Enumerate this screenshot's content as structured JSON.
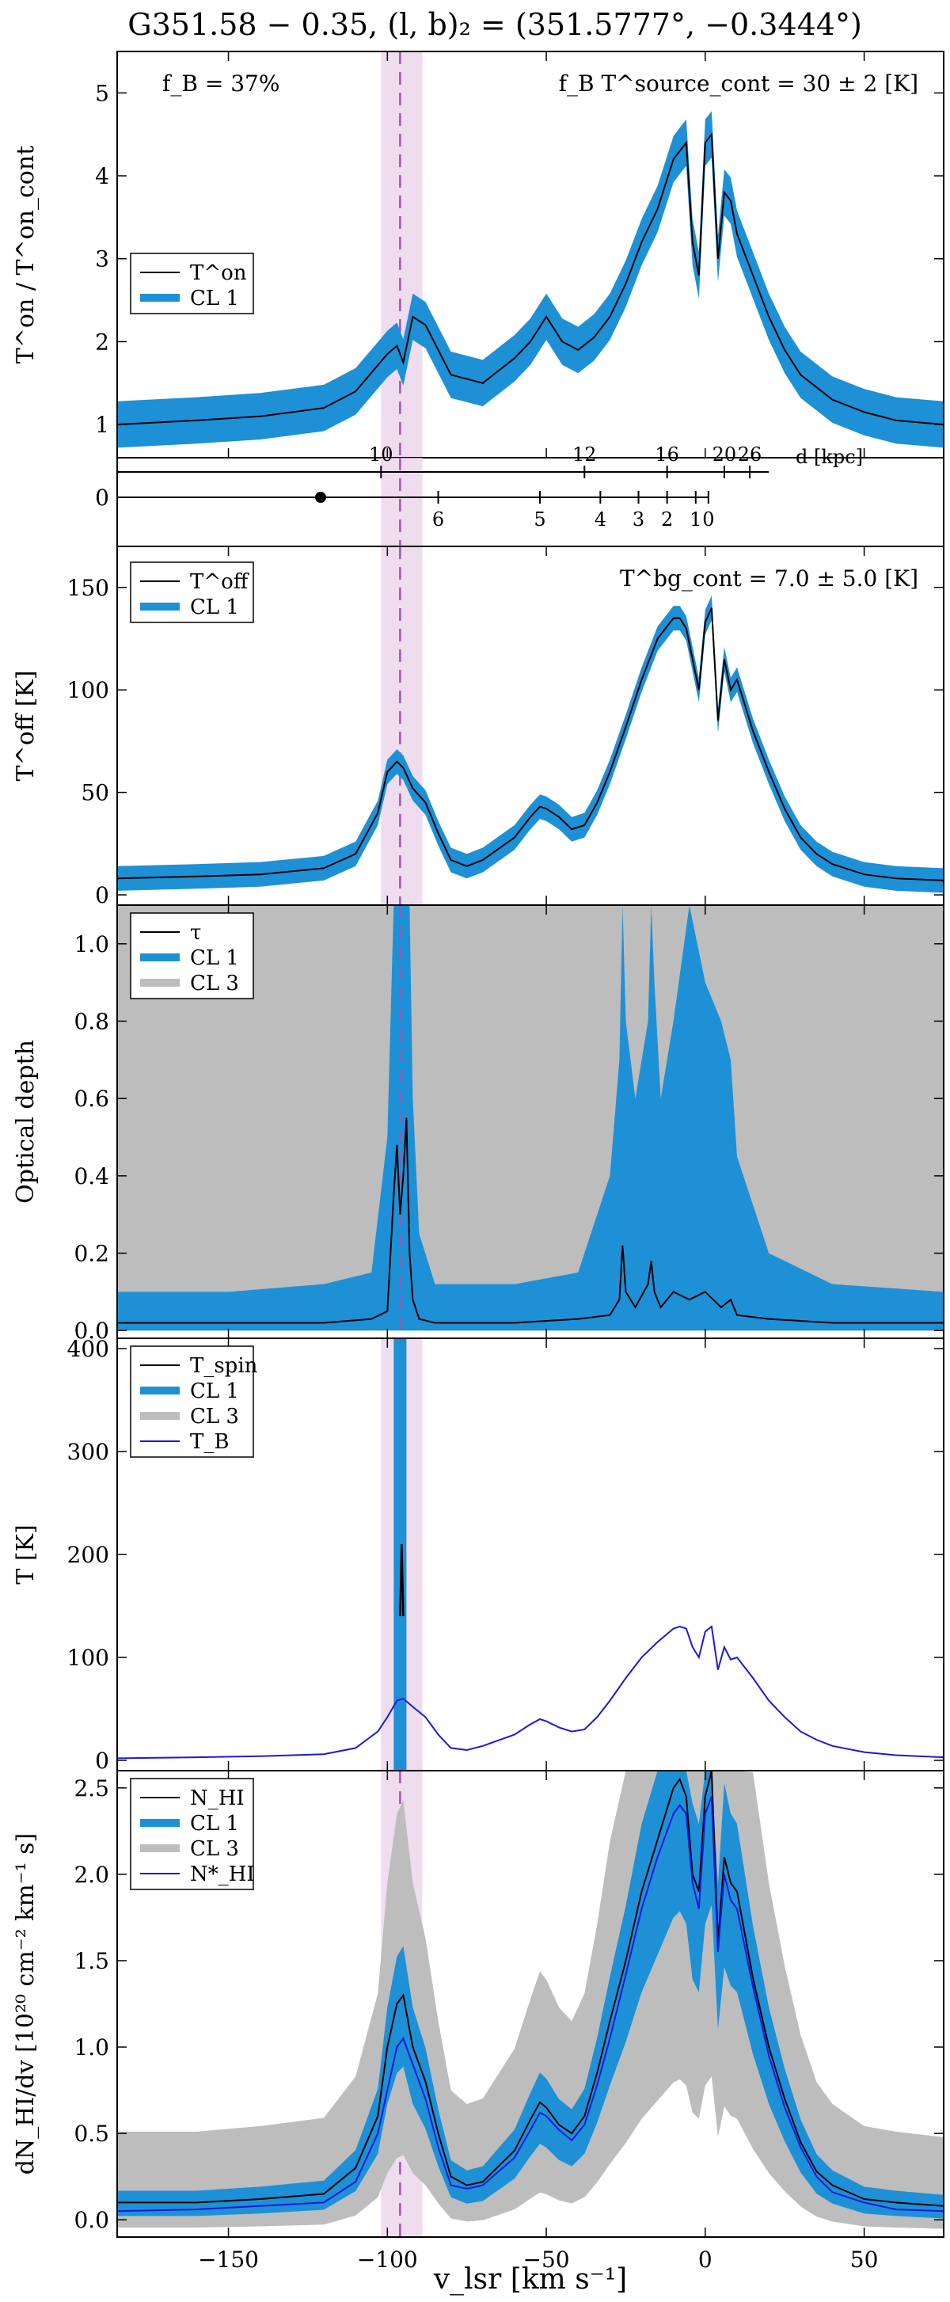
{
  "title": "G351.58 − 0.35, (l, b)₂ = (351.5777°, −0.3444°)",
  "colors": {
    "cl1": "#1e90d6",
    "cl3": "#bdbdbd",
    "line": "#000000",
    "tb": "#1a1ad8",
    "vband": "#e9d2ea",
    "vline": "#9b57b0"
  },
  "x_axis": {
    "label": "v_lsr [km s⁻¹]",
    "range": [
      -185,
      75
    ],
    "ticks": [
      -150,
      -100,
      -50,
      0,
      50
    ],
    "tick_labels": [
      "−150",
      "−100",
      "−50",
      "0",
      "50"
    ]
  },
  "velocity_marker": {
    "center": -96,
    "band": [
      -102,
      -89
    ]
  },
  "panels": [
    {
      "id": "ton",
      "ylabel": "T^on / T^on_cont",
      "ylim": [
        0.6,
        5.5
      ],
      "yticks": [
        1,
        2,
        3,
        4,
        5
      ],
      "annotations": {
        "left": "f_B = 37%",
        "right": "f_B T^source_cont = 30 ± 2 [K]"
      },
      "legend": [
        {
          "label": "T^on",
          "style": "line"
        },
        {
          "label": "CL 1",
          "style": "cl1"
        }
      ]
    },
    {
      "id": "distance",
      "ylabel": "0",
      "upper_ticks": [
        {
          "v": -102,
          "label": "10"
        },
        {
          "v": -38,
          "label": "12"
        },
        {
          "v": -12,
          "label": "16"
        },
        {
          "v": 6,
          "label": "20"
        },
        {
          "v": 14,
          "label": "26"
        }
      ],
      "lower_ticks": [
        {
          "v": -84,
          "label": "6"
        },
        {
          "v": -52,
          "label": "5"
        },
        {
          "v": -33,
          "label": "4"
        },
        {
          "v": -21,
          "label": "3"
        },
        {
          "v": -12,
          "label": "2"
        },
        {
          "v": -3,
          "label": "1"
        },
        {
          "v": 1,
          "label": "0"
        }
      ],
      "unit": "d [kpc]",
      "dot": -121
    },
    {
      "id": "toff",
      "ylabel": "T^off [K]",
      "ylim": [
        -5,
        170
      ],
      "yticks": [
        0,
        50,
        100,
        150
      ],
      "annotations": {
        "right": "T^bg_cont = 7.0 ± 5.0 [K]"
      },
      "legend": [
        {
          "label": "T^off",
          "style": "line"
        },
        {
          "label": "CL 1",
          "style": "cl1"
        }
      ]
    },
    {
      "id": "tau",
      "ylabel": "Optical depth",
      "ylim": [
        -0.02,
        1.1
      ],
      "yticks": [
        0.0,
        0.2,
        0.4,
        0.6,
        0.8,
        1.0
      ],
      "ytick_labels": [
        "0.0",
        "0.2",
        "0.4",
        "0.6",
        "0.8",
        "1.0"
      ],
      "legend": [
        {
          "label": "τ",
          "style": "line"
        },
        {
          "label": "CL 1",
          "style": "cl1"
        },
        {
          "label": "CL 3",
          "style": "cl3"
        }
      ]
    },
    {
      "id": "tspin",
      "ylabel": "T [K]",
      "ylim": [
        -10,
        410
      ],
      "yticks": [
        0,
        100,
        200,
        300,
        400
      ],
      "legend": [
        {
          "label": "T_spin",
          "style": "line"
        },
        {
          "label": "CL 1",
          "style": "cl1"
        },
        {
          "label": "CL 3",
          "style": "cl3"
        },
        {
          "label": "T_B",
          "style": "tb"
        }
      ]
    },
    {
      "id": "nhi",
      "ylabel": "dN_HI/dv [10²⁰ cm⁻² km⁻¹ s]",
      "ylim": [
        -0.1,
        2.6
      ],
      "yticks": [
        0.0,
        0.5,
        1.0,
        1.5,
        2.0,
        2.5
      ],
      "ytick_labels": [
        "0.0",
        "0.5",
        "1.0",
        "1.5",
        "2.0",
        "2.5"
      ],
      "legend": [
        {
          "label": "N_HI",
          "style": "line"
        },
        {
          "label": "CL 1",
          "style": "cl1"
        },
        {
          "label": "CL 3",
          "style": "cl3"
        },
        {
          "label": "N*_HI",
          "style": "tb"
        }
      ]
    }
  ],
  "chart_data": [
    {
      "type": "line",
      "panel": "ton",
      "x": [
        -185,
        -160,
        -140,
        -120,
        -110,
        -100,
        -97,
        -95,
        -92,
        -88,
        -80,
        -70,
        -60,
        -55,
        -50,
        -45,
        -40,
        -35,
        -30,
        -25,
        -20,
        -15,
        -10,
        -8,
        -6,
        -4,
        -2,
        0,
        2,
        4,
        6,
        8,
        10,
        15,
        20,
        25,
        30,
        40,
        50,
        60,
        75
      ],
      "series": [
        {
          "name": "T^on",
          "values": [
            1.0,
            1.05,
            1.1,
            1.2,
            1.4,
            1.85,
            1.95,
            1.75,
            2.3,
            2.2,
            1.6,
            1.5,
            1.8,
            2.0,
            2.3,
            2.0,
            1.9,
            2.05,
            2.3,
            2.7,
            3.2,
            3.6,
            4.2,
            4.3,
            4.4,
            3.2,
            2.8,
            4.4,
            4.5,
            3.0,
            3.8,
            3.7,
            3.3,
            2.8,
            2.3,
            1.9,
            1.6,
            1.3,
            1.15,
            1.05,
            1.0
          ]
        }
      ],
      "band_halfwidth": 0.28
    },
    {
      "type": "line",
      "panel": "toff",
      "x": [
        -185,
        -160,
        -140,
        -120,
        -110,
        -103,
        -100,
        -97,
        -95,
        -92,
        -88,
        -84,
        -80,
        -75,
        -70,
        -60,
        -55,
        -52,
        -50,
        -46,
        -42,
        -38,
        -34,
        -30,
        -25,
        -20,
        -15,
        -10,
        -8,
        -6,
        -4,
        -2,
        0,
        2,
        4,
        6,
        8,
        10,
        15,
        20,
        25,
        30,
        35,
        40,
        50,
        60,
        75
      ],
      "series": [
        {
          "name": "T^off",
          "values": [
            8,
            9,
            10,
            13,
            20,
            40,
            60,
            65,
            62,
            52,
            45,
            30,
            17,
            14,
            17,
            28,
            38,
            43,
            42,
            38,
            32,
            34,
            45,
            60,
            82,
            105,
            125,
            135,
            135,
            130,
            115,
            100,
            133,
            140,
            85,
            115,
            100,
            105,
            80,
            60,
            42,
            28,
            20,
            15,
            10,
            8,
            7
          ]
        }
      ],
      "band_halfwidth": 6
    },
    {
      "type": "line",
      "panel": "tau",
      "x": [
        -185,
        -150,
        -120,
        -105,
        -100,
        -98,
        -97,
        -96,
        -95,
        -94,
        -93,
        -92,
        -90,
        -85,
        -60,
        -40,
        -30,
        -27,
        -26,
        -25,
        -22,
        -18,
        -17,
        -16,
        -14,
        -10,
        -5,
        0,
        5,
        8,
        10,
        20,
        40,
        75
      ],
      "series": [
        {
          "name": "τ",
          "values": [
            0.02,
            0.02,
            0.02,
            0.03,
            0.05,
            0.35,
            0.48,
            0.3,
            0.4,
            0.55,
            0.2,
            0.08,
            0.03,
            0.02,
            0.02,
            0.03,
            0.04,
            0.08,
            0.22,
            0.1,
            0.06,
            0.12,
            0.18,
            0.1,
            0.06,
            0.1,
            0.08,
            0.1,
            0.06,
            0.08,
            0.04,
            0.03,
            0.02,
            0.02
          ]
        }
      ],
      "cl1_upper": [
        0.1,
        0.1,
        0.12,
        0.15,
        0.5,
        1.1,
        1.1,
        1.1,
        1.1,
        1.1,
        1.1,
        0.6,
        0.25,
        0.12,
        0.12,
        0.15,
        0.4,
        0.7,
        1.1,
        0.8,
        0.6,
        0.8,
        1.1,
        0.9,
        0.6,
        0.8,
        1.1,
        0.9,
        0.8,
        0.7,
        0.45,
        0.2,
        0.12,
        0.1
      ],
      "cl3_upper": 1.1
    },
    {
      "type": "line",
      "panel": "tspin",
      "x": [
        -185,
        -160,
        -140,
        -120,
        -110,
        -103,
        -100,
        -97,
        -95,
        -92,
        -88,
        -84,
        -80,
        -75,
        -70,
        -60,
        -55,
        -52,
        -50,
        -46,
        -42,
        -38,
        -34,
        -30,
        -25,
        -20,
        -15,
        -10,
        -8,
        -6,
        -4,
        -2,
        0,
        2,
        4,
        6,
        8,
        10,
        15,
        20,
        25,
        30,
        35,
        40,
        50,
        60,
        75
      ],
      "series": [
        {
          "name": "T_B",
          "values": [
            2,
            3,
            4,
            6,
            12,
            28,
            42,
            58,
            60,
            52,
            42,
            25,
            12,
            10,
            14,
            25,
            35,
            40,
            38,
            32,
            28,
            30,
            42,
            58,
            80,
            100,
            115,
            128,
            130,
            128,
            110,
            100,
            125,
            130,
            88,
            110,
            98,
            100,
            80,
            58,
            42,
            28,
            20,
            14,
            8,
            5,
            3
          ]
        },
        {
          "name": "T_spin",
          "x": [
            -96,
            -95.5,
            -95
          ],
          "values": [
            140,
            210,
            140
          ]
        }
      ]
    },
    {
      "type": "line",
      "panel": "nhi",
      "x": [
        -185,
        -160,
        -140,
        -120,
        -110,
        -103,
        -100,
        -97,
        -95,
        -92,
        -88,
        -84,
        -80,
        -75,
        -70,
        -60,
        -55,
        -52,
        -50,
        -46,
        -42,
        -38,
        -34,
        -30,
        -25,
        -20,
        -15,
        -10,
        -8,
        -6,
        -4,
        -2,
        0,
        2,
        4,
        6,
        8,
        10,
        15,
        20,
        25,
        30,
        35,
        40,
        50,
        60,
        75
      ],
      "series": [
        {
          "name": "N_HI",
          "values": [
            0.1,
            0.1,
            0.12,
            0.15,
            0.3,
            0.6,
            1.0,
            1.25,
            1.3,
            1.0,
            0.8,
            0.5,
            0.25,
            0.2,
            0.22,
            0.4,
            0.58,
            0.68,
            0.65,
            0.55,
            0.5,
            0.6,
            0.85,
            1.15,
            1.5,
            1.9,
            2.2,
            2.5,
            2.55,
            2.45,
            2.0,
            1.9,
            2.45,
            2.6,
            1.6,
            2.1,
            1.95,
            1.9,
            1.4,
            1.0,
            0.7,
            0.45,
            0.28,
            0.2,
            0.12,
            0.1,
            0.08
          ]
        },
        {
          "name": "N*_HI",
          "values": [
            0.05,
            0.06,
            0.08,
            0.1,
            0.22,
            0.5,
            0.75,
            1.0,
            1.05,
            0.9,
            0.7,
            0.42,
            0.2,
            0.18,
            0.2,
            0.36,
            0.52,
            0.62,
            0.6,
            0.52,
            0.46,
            0.55,
            0.78,
            1.05,
            1.42,
            1.8,
            2.1,
            2.35,
            2.4,
            2.35,
            1.95,
            1.8,
            2.35,
            2.45,
            1.55,
            2.0,
            1.85,
            1.8,
            1.35,
            0.95,
            0.65,
            0.42,
            0.25,
            0.16,
            0.1,
            0.06,
            0.05
          ]
        }
      ]
    }
  ]
}
